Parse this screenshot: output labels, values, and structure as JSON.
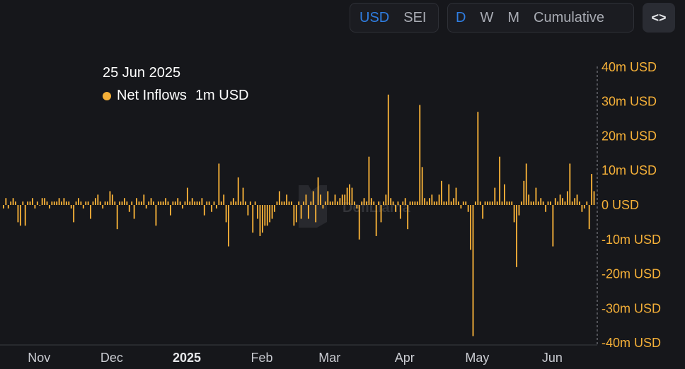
{
  "toolbar": {
    "currency": [
      {
        "label": "USD",
        "active": true
      },
      {
        "label": "SEI",
        "active": false
      }
    ],
    "period": [
      {
        "label": "D",
        "active": true
      },
      {
        "label": "W",
        "active": false
      },
      {
        "label": "M",
        "active": false
      },
      {
        "label": "Cumulative",
        "active": false
      }
    ],
    "embed_icon": "code-brackets-icon",
    "embed_label": "<>"
  },
  "tooltip": {
    "date": "25 Jun 2025",
    "series": "Net Inflows",
    "value": "1m USD",
    "color": "#f5b038"
  },
  "chart_data": {
    "type": "bar",
    "series": [
      {
        "name": "Net Inflows",
        "color": "#f5b038"
      }
    ],
    "ylim": [
      -40,
      40
    ],
    "yticks": [
      {
        "value": 40,
        "label": "40m USD"
      },
      {
        "value": 30,
        "label": "30m USD"
      },
      {
        "value": 20,
        "label": "20m USD"
      },
      {
        "value": 10,
        "label": "10m USD"
      },
      {
        "value": 0,
        "label": "0 USD"
      },
      {
        "value": -10,
        "label": "-10m USD"
      },
      {
        "value": -20,
        "label": "-20m USD"
      },
      {
        "value": -30,
        "label": "-30m USD"
      },
      {
        "value": -40,
        "label": "-40m USD"
      }
    ],
    "xticks": [
      {
        "index": 15,
        "label": "Nov",
        "bold": false
      },
      {
        "index": 45,
        "label": "Dec",
        "bold": false
      },
      {
        "index": 76,
        "label": "2025",
        "bold": true
      },
      {
        "index": 107,
        "label": "Feb",
        "bold": false
      },
      {
        "index": 135,
        "label": "Mar",
        "bold": false
      },
      {
        "index": 166,
        "label": "Apr",
        "bold": false
      },
      {
        "index": 196,
        "label": "May",
        "bold": false
      },
      {
        "index": 227,
        "label": "Jun",
        "bold": false
      }
    ],
    "values": [
      -1,
      2,
      -1,
      1,
      2,
      1,
      -5,
      -6,
      1,
      -6,
      1,
      1,
      2,
      -1,
      1,
      0,
      2,
      2,
      1,
      -1,
      1,
      1,
      1,
      2,
      1,
      2,
      1,
      1,
      -1,
      -5,
      1,
      2,
      1,
      -1,
      1,
      1,
      -4,
      1,
      2,
      3,
      1,
      -1,
      1,
      1,
      4,
      3,
      1,
      -7,
      1,
      1,
      2,
      1,
      -2,
      1,
      -4,
      2,
      1,
      1,
      3,
      -1,
      1,
      2,
      1,
      -6,
      1,
      1,
      1,
      2,
      1,
      -3,
      1,
      1,
      2,
      1,
      -1,
      1,
      5,
      1,
      2,
      1,
      1,
      1,
      2,
      -3,
      1,
      1,
      -2,
      1,
      -1,
      12,
      1,
      3,
      -5,
      -12,
      1,
      2,
      1,
      8,
      1,
      5,
      1,
      -3,
      1,
      -8,
      1,
      -4,
      -9,
      -8,
      -6,
      -6,
      -5,
      -4,
      -2,
      1,
      4,
      1,
      1,
      3,
      1,
      1,
      -6,
      -5,
      1,
      -4,
      1,
      3,
      -4,
      1,
      4,
      -5,
      8,
      3,
      -1,
      1,
      4,
      1,
      1,
      3,
      1,
      2,
      3,
      3,
      5,
      6,
      5,
      1,
      -1,
      -10,
      1,
      2,
      1,
      14,
      2,
      1,
      -9,
      1,
      -5,
      1,
      3,
      32,
      2,
      1,
      -2,
      1,
      -4,
      1,
      2,
      -7,
      1,
      1,
      1,
      1,
      29,
      11,
      2,
      1,
      2,
      3,
      1,
      1,
      3,
      7,
      1,
      1,
      6,
      1,
      2,
      5,
      1,
      -1,
      1,
      1,
      -2,
      -13,
      -38,
      1,
      27,
      1,
      -4,
      1,
      1,
      1,
      1,
      5,
      1,
      14,
      1,
      6,
      1,
      1,
      1,
      -5,
      -18,
      -3,
      1,
      7,
      12,
      3,
      1,
      1,
      5,
      1,
      2,
      1,
      -2,
      1,
      1,
      -12,
      2,
      1,
      3,
      2,
      1,
      4,
      12,
      1,
      2,
      3,
      1,
      -2,
      -1,
      1,
      -7,
      9,
      4
    ]
  },
  "watermark": "DefiLlama"
}
